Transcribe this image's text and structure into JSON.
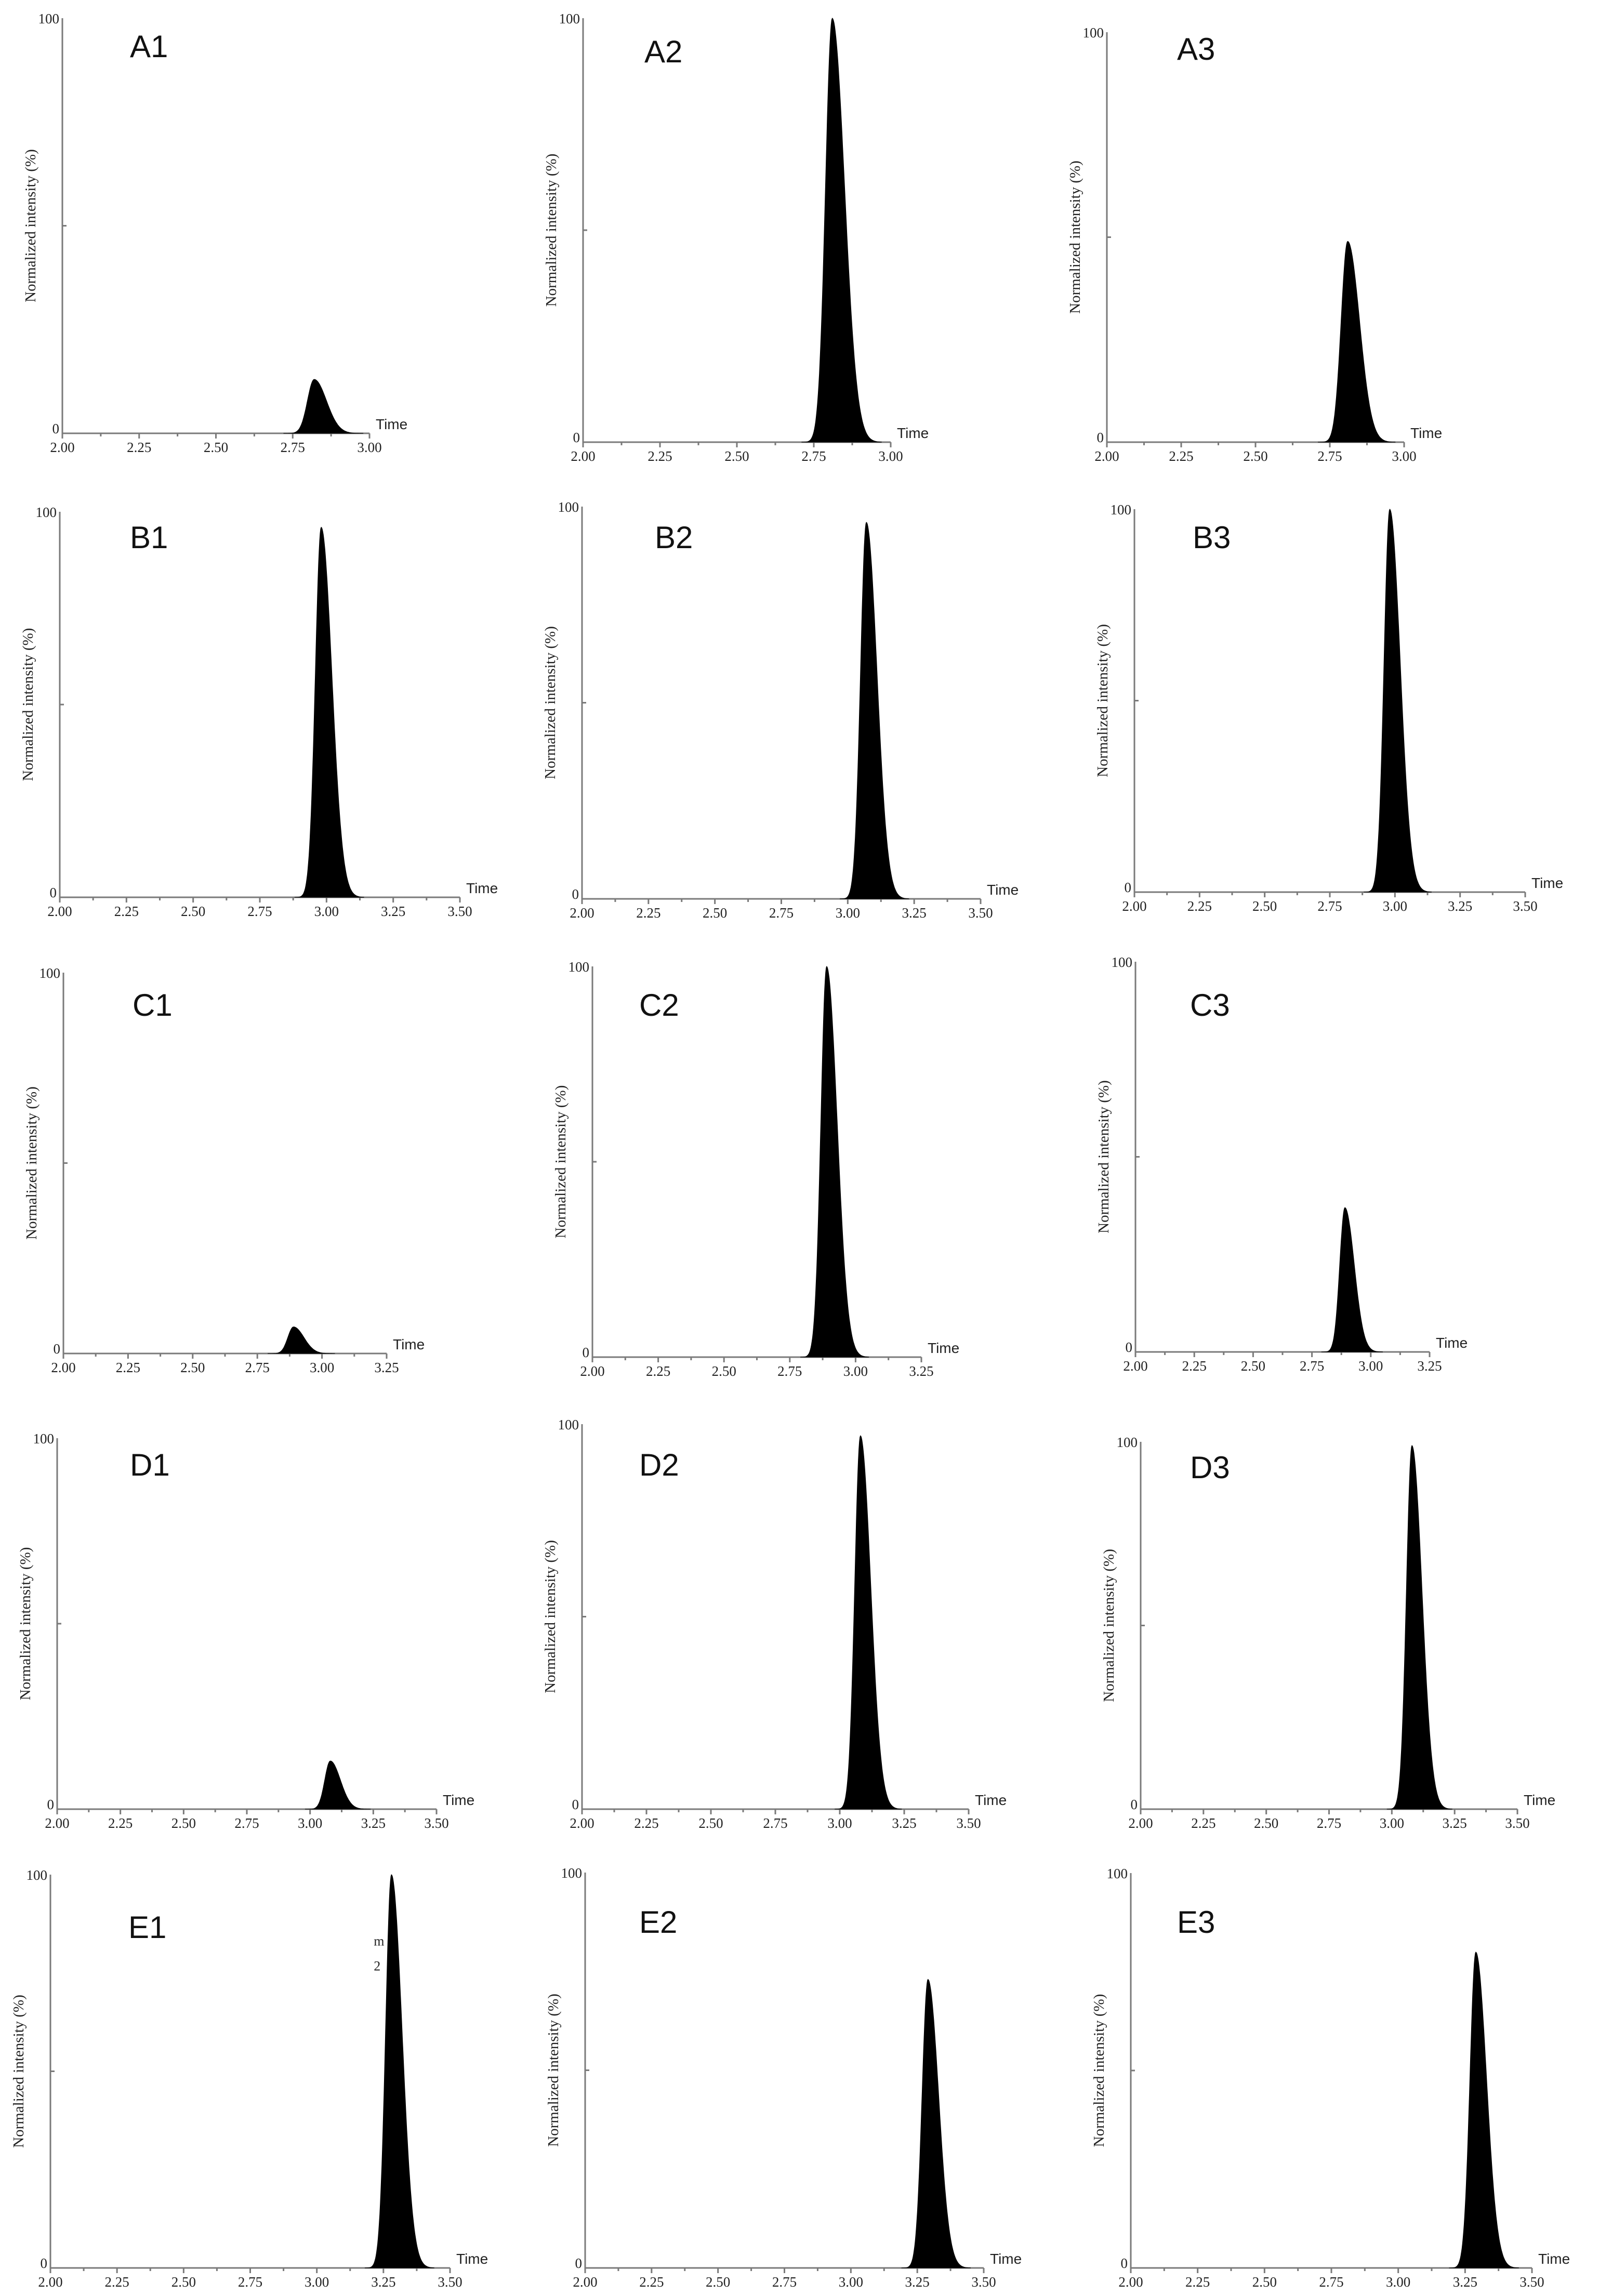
{
  "chart_data": [
    {
      "panel": "A1",
      "type": "area",
      "ylabel": "Normalized intensity (%)",
      "xlabel": "Time",
      "xlim": [
        2.0,
        3.0
      ],
      "ylim": [
        0,
        100
      ],
      "x_ticks": [
        "2.00",
        "2.25",
        "2.50",
        "2.75",
        "3.00"
      ],
      "y_ticks": [
        "0",
        "100"
      ],
      "peak": {
        "x": 2.82,
        "y": 13
      }
    },
    {
      "panel": "A2",
      "type": "area",
      "ylabel": "Normalized intensity (%)",
      "xlabel": "Time",
      "xlim": [
        2.0,
        3.0
      ],
      "ylim": [
        0,
        100
      ],
      "x_ticks": [
        "2.00",
        "2.25",
        "2.50",
        "2.75",
        "3.00"
      ],
      "y_ticks": [
        "0",
        "100"
      ],
      "peak": {
        "x": 2.81,
        "y": 100
      }
    },
    {
      "panel": "A3",
      "type": "area",
      "ylabel": "Normalized intensity (%)",
      "xlabel": "Time",
      "xlim": [
        2.0,
        3.0
      ],
      "ylim": [
        0,
        100
      ],
      "x_ticks": [
        "2.00",
        "2.25",
        "2.50",
        "2.75",
        "3.00"
      ],
      "y_ticks": [
        "0",
        "100"
      ],
      "peak": {
        "x": 2.81,
        "y": 49
      }
    },
    {
      "panel": "B1",
      "type": "area",
      "ylabel": "Normalized intensity (%)",
      "xlabel": "Time",
      "xlim": [
        2.0,
        3.5
      ],
      "ylim": [
        0,
        100
      ],
      "x_ticks": [
        "2.00",
        "2.25",
        "2.50",
        "2.75",
        "3.00",
        "3.25",
        "3.50"
      ],
      "y_ticks": [
        "0",
        "100"
      ],
      "peak": {
        "x": 2.98,
        "y": 96
      }
    },
    {
      "panel": "B2",
      "type": "area",
      "ylabel": "Normalized intensity (%)",
      "xlabel": "Time",
      "xlim": [
        2.0,
        3.5
      ],
      "ylim": [
        0,
        100
      ],
      "x_ticks": [
        "2.00",
        "2.25",
        "2.50",
        "2.75",
        "3.00",
        "3.25",
        "3.50"
      ],
      "y_ticks": [
        "0",
        "100"
      ],
      "peak": {
        "x": 3.07,
        "y": 96
      }
    },
    {
      "panel": "B3",
      "type": "area",
      "ylabel": "Normalized intensity (%)",
      "xlabel": "Time",
      "xlim": [
        2.0,
        3.5
      ],
      "ylim": [
        0,
        100
      ],
      "x_ticks": [
        "2.00",
        "2.25",
        "2.50",
        "2.75",
        "3.00",
        "3.25",
        "3.50"
      ],
      "y_ticks": [
        "0",
        "100"
      ],
      "peak": {
        "x": 2.98,
        "y": 100
      }
    },
    {
      "panel": "C1",
      "type": "area",
      "ylabel": "Normalized intensity (%)",
      "xlabel": "Time",
      "xlim": [
        2.0,
        3.25
      ],
      "ylim": [
        0,
        100
      ],
      "x_ticks": [
        "2.00",
        "2.25",
        "2.50",
        "2.75",
        "3.00",
        "3.25"
      ],
      "y_ticks": [
        "0",
        "100"
      ],
      "peak": {
        "x": 2.89,
        "y": 7
      }
    },
    {
      "panel": "C2",
      "type": "area",
      "ylabel": "Normalized intensity (%)",
      "xlabel": "Time",
      "xlim": [
        2.0,
        3.25
      ],
      "ylim": [
        0,
        100
      ],
      "x_ticks": [
        "2.00",
        "2.25",
        "2.50",
        "2.75",
        "3.00",
        "3.25"
      ],
      "y_ticks": [
        "0",
        "100"
      ],
      "peak": {
        "x": 2.89,
        "y": 100
      }
    },
    {
      "panel": "C3",
      "type": "area",
      "ylabel": "Normalized intensity (%)",
      "xlabel": "Time",
      "xlim": [
        2.0,
        3.25
      ],
      "ylim": [
        0,
        100
      ],
      "x_ticks": [
        "2.00",
        "2.25",
        "2.50",
        "2.75",
        "3.00",
        "3.25"
      ],
      "y_ticks": [
        "0",
        "100"
      ],
      "peak": {
        "x": 2.89,
        "y": 37
      }
    },
    {
      "panel": "D1",
      "type": "area",
      "ylabel": "Normalized intensity (%)",
      "xlabel": "Time",
      "xlim": [
        2.0,
        3.5
      ],
      "ylim": [
        0,
        100
      ],
      "x_ticks": [
        "2.00",
        "2.25",
        "2.50",
        "2.75",
        "3.00",
        "3.25",
        "3.50"
      ],
      "y_ticks": [
        "0",
        "100"
      ],
      "peak": {
        "x": 3.08,
        "y": 13
      }
    },
    {
      "panel": "D2",
      "type": "area",
      "ylabel": "Normalized intensity (%)",
      "xlabel": "Time",
      "xlim": [
        2.0,
        3.5
      ],
      "ylim": [
        0,
        100
      ],
      "x_ticks": [
        "2.00",
        "2.25",
        "2.50",
        "2.75",
        "3.00",
        "3.25",
        "3.50"
      ],
      "y_ticks": [
        "0",
        "100"
      ],
      "peak": {
        "x": 3.08,
        "y": 97
      }
    },
    {
      "panel": "D3",
      "type": "area",
      "ylabel": "Normalized intensity (%)",
      "xlabel": "Time",
      "xlim": [
        2.0,
        3.5
      ],
      "ylim": [
        0,
        100
      ],
      "x_ticks": [
        "2.00",
        "2.25",
        "2.50",
        "2.75",
        "3.00",
        "3.25",
        "3.50"
      ],
      "y_ticks": [
        "0",
        "100"
      ],
      "peak": {
        "x": 3.08,
        "y": 99
      }
    },
    {
      "panel": "E1",
      "type": "area",
      "ylabel": "Normalized intensity (%)",
      "xlabel": "Time",
      "xlim": [
        2.0,
        3.5
      ],
      "ylim": [
        0,
        100
      ],
      "x_ticks": [
        "2.00",
        "2.25",
        "2.50",
        "2.75",
        "3.00",
        "3.25",
        "3.50"
      ],
      "y_ticks": [
        "0",
        "100"
      ],
      "peak": {
        "x": 3.28,
        "y": 100
      },
      "annotation": [
        "m",
        "2"
      ]
    },
    {
      "panel": "E2",
      "type": "area",
      "ylabel": "Normalized intensity (%)",
      "xlabel": "Time",
      "xlim": [
        2.0,
        3.5
      ],
      "ylim": [
        0,
        100
      ],
      "x_ticks": [
        "2.00",
        "2.25",
        "2.50",
        "2.75",
        "3.00",
        "3.25",
        "3.50"
      ],
      "y_ticks": [
        "0",
        "100"
      ],
      "peak": {
        "x": 3.29,
        "y": 73
      }
    },
    {
      "panel": "E3",
      "type": "area",
      "ylabel": "Normalized intensity (%)",
      "xlabel": "Time",
      "xlim": [
        2.0,
        3.5
      ],
      "ylim": [
        0,
        100
      ],
      "x_ticks": [
        "2.00",
        "2.25",
        "2.50",
        "2.75",
        "3.00",
        "3.25",
        "3.50"
      ],
      "y_ticks": [
        "0",
        "100"
      ],
      "peak": {
        "x": 3.29,
        "y": 80
      }
    }
  ]
}
